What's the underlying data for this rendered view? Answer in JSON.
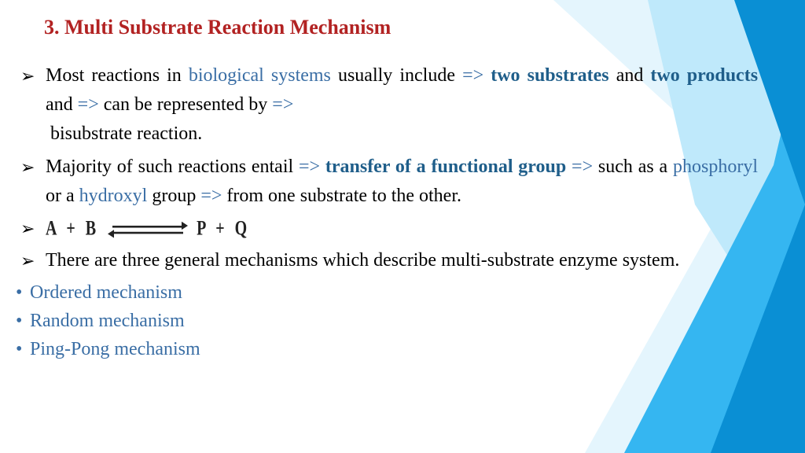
{
  "colors": {
    "title": "#b22222",
    "blue_bold": "#1f5e8a",
    "blue_plain": "#3a6ea5",
    "black": "#000000",
    "bg_tri_1": "#0a8fd4",
    "bg_tri_2": "#35b6f1",
    "bg_tri_3": "#bfe9fb",
    "bg_tri_4": "#e4f5fd"
  },
  "title": "3. Multi Substrate Reaction Mechanism",
  "b1": {
    "t1": "Most reactions in ",
    "t2": "biological systems",
    "t3": " usually include ",
    "a1": "=>",
    "t4": " two substrates",
    "t5": " and ",
    "t6": "two products",
    "t7": " and ",
    "a2": "=>",
    "t8": " can be represented by ",
    "a3": "=>",
    "t9": " bisubstrate reaction."
  },
  "b2": {
    "t1": "Majority of such reactions entail ",
    "a1": "=>",
    "t2": " transfer of a functional group ",
    "a2": "=>",
    "t3": " such as a ",
    "t4": "phosphoryl",
    "t5": " or a ",
    "t6": "hydroxyl",
    "t7": " group ",
    "a3": "=>",
    "t8": " from one substrate to the other."
  },
  "eq": {
    "lhs": "A  +  B",
    "rhs": "P  +  Q"
  },
  "b4": "There are three general mechanisms which describe multi-substrate enzyme system.",
  "mech": {
    "m1": "Ordered mechanism",
    "m2": "Random mechanism",
    "m3": "Ping-Pong mechanism"
  }
}
